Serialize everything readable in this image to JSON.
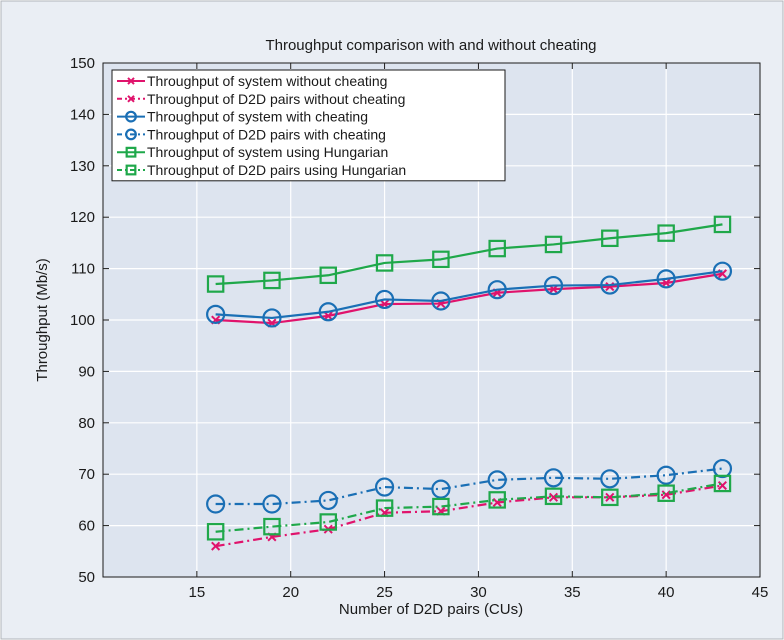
{
  "chart_data": {
    "type": "line",
    "title": "Throughput comparison with and without cheating",
    "xlabel": "Number of D2D pairs (CUs)",
    "ylabel": "Throughput (Mb/s)",
    "xlim": [
      10,
      45
    ],
    "ylim": [
      50,
      150
    ],
    "xticks": [
      15,
      20,
      25,
      30,
      35,
      40,
      45
    ],
    "yticks": [
      50,
      60,
      70,
      80,
      90,
      100,
      110,
      120,
      130,
      140,
      150
    ],
    "x": [
      16,
      19,
      22,
      25,
      28,
      31,
      34,
      37,
      40,
      43
    ],
    "grid": true,
    "legend_position": "top-left",
    "colors": {
      "frame_bg": "#eaeef4",
      "plot_bg": "#dde4ef",
      "grid": "#ffffff"
    },
    "series": [
      {
        "name": "Throughput of system without cheating",
        "color": "#e0136c",
        "dash": "solid",
        "marker": "x",
        "values": [
          100.0,
          99.4,
          100.8,
          103.1,
          103.2,
          105.3,
          106.0,
          106.5,
          107.2,
          109.0
        ]
      },
      {
        "name": "Throughput of D2D pairs without cheating",
        "color": "#e0136c",
        "dash": "dashdot",
        "marker": "x",
        "values": [
          56.0,
          57.8,
          59.3,
          62.5,
          62.8,
          64.5,
          65.5,
          65.5,
          66.0,
          67.8
        ]
      },
      {
        "name": "Throughput of system with cheating",
        "color": "#1a6fb5",
        "dash": "solid",
        "marker": "o",
        "values": [
          101.1,
          100.4,
          101.6,
          104.0,
          103.7,
          105.9,
          106.7,
          106.8,
          108.0,
          109.5
        ]
      },
      {
        "name": "Throughput of D2D pairs with cheating",
        "color": "#1a6fb5",
        "dash": "dashdot",
        "marker": "o",
        "values": [
          64.2,
          64.2,
          64.9,
          67.5,
          67.1,
          68.9,
          69.3,
          69.1,
          69.8,
          71.1
        ]
      },
      {
        "name": "Throughput of system using Hungarian",
        "color": "#1fa84a",
        "dash": "solid",
        "marker": "s",
        "values": [
          107.0,
          107.7,
          108.7,
          111.1,
          111.8,
          113.9,
          114.7,
          115.9,
          116.9,
          118.6
        ]
      },
      {
        "name": "Throughput of D2D pairs using Hungarian",
        "color": "#1fa84a",
        "dash": "dashdot",
        "marker": "s",
        "values": [
          58.8,
          59.8,
          60.7,
          63.4,
          63.7,
          65.0,
          65.7,
          65.5,
          66.3,
          68.2
        ]
      }
    ]
  }
}
